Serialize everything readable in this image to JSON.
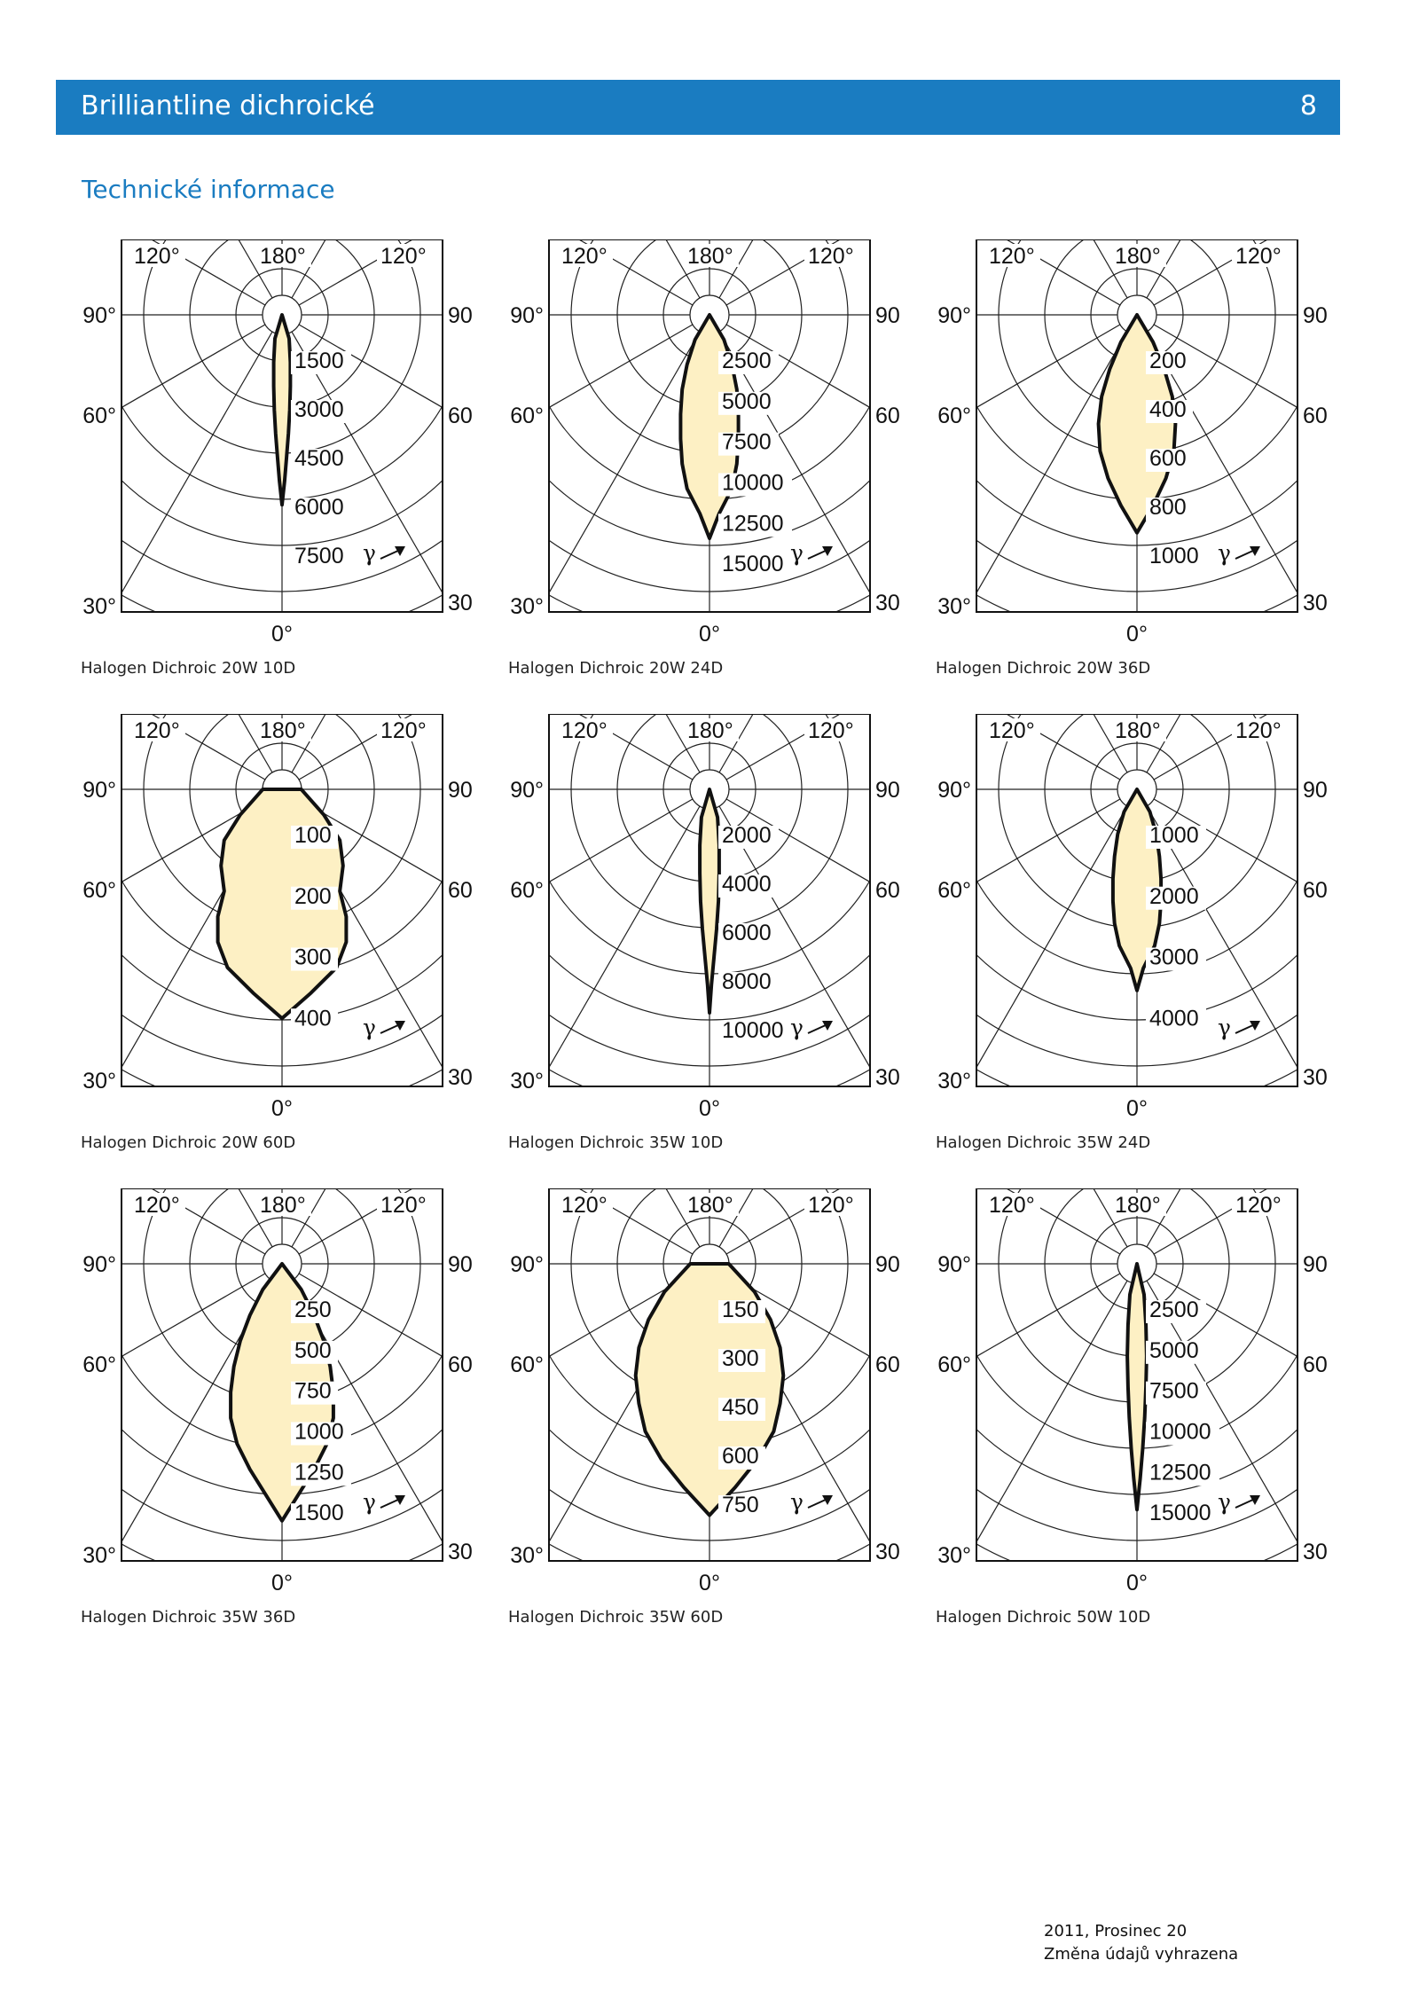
{
  "header": {
    "title": "Brilliantline dichroické",
    "page_number": "8",
    "color": "#1a7cc1"
  },
  "section_title": "Technické informace",
  "diagram_style": {
    "fill": "#fdf0c4",
    "outline": "#111111",
    "grid": "#222222"
  },
  "diagrams": [
    {
      "caption": "Halogen Dichroic 20W 10D",
      "ring_labels": [
        "1500",
        "3000",
        "4500",
        "6000",
        "7500"
      ],
      "angle_labels": {
        "top_left": "120°",
        "top_center": "180°",
        "top_right": "120°",
        "left_90": "90°",
        "right_90": "90°",
        "left_60": "60°",
        "right_60": "60°",
        "left_30": "30°",
        "right_30": "30°",
        "bottom": "0°"
      },
      "gamma_symbol": "γ",
      "beam_half_width": [
        0,
        0.022,
        0.026,
        0.026,
        0.024,
        0.02,
        0.014,
        0.008,
        0
      ],
      "beam_length": 0.68
    },
    {
      "caption": "Halogen Dichroic 20W 24D",
      "ring_labels": [
        "2500",
        "5000",
        "7500",
        "10000",
        "12500",
        "15000"
      ],
      "angle_labels": {
        "top_left": "120°",
        "top_center": "180°",
        "top_right": "120°",
        "left_90": "90°",
        "right_90": "90°",
        "left_60": "60°",
        "right_60": "60°",
        "left_30": "30°",
        "right_30": "30°",
        "bottom": "0°"
      },
      "gamma_symbol": "γ",
      "beam_half_width": [
        0,
        0.045,
        0.07,
        0.085,
        0.09,
        0.09,
        0.085,
        0.07,
        0.03,
        0
      ],
      "beam_length": 0.8
    },
    {
      "caption": "Halogen Dichroic 20W 36D",
      "ring_labels": [
        "200",
        "400",
        "600",
        "800",
        "1000"
      ],
      "angle_labels": {
        "top_left": "120°",
        "top_center": "180°",
        "top_right": "120°",
        "left_90": "90°",
        "right_90": "90°",
        "left_60": "60°",
        "right_60": "60°",
        "left_30": "30°",
        "right_30": "30°",
        "bottom": "0°"
      },
      "gamma_symbol": "γ",
      "beam_half_width": [
        0,
        0.05,
        0.085,
        0.11,
        0.12,
        0.115,
        0.09,
        0.05,
        0
      ],
      "beam_length": 0.78
    },
    {
      "caption": "Halogen Dichroic 20W 60D",
      "ring_labels": [
        "100",
        "200",
        "300",
        "400"
      ],
      "angle_labels": {
        "top_left": "120°",
        "top_center": "180°",
        "top_right": "120°",
        "left_90": "90°",
        "right_90": "90°",
        "left_60": "60°",
        "right_60": "60°",
        "left_30": "30°",
        "right_30": "30°",
        "bottom": "0°"
      },
      "gamma_symbol": "γ",
      "beam_half_width": [
        0.06,
        0.13,
        0.18,
        0.19,
        0.18,
        0.2,
        0.2,
        0.17,
        0.09,
        0
      ],
      "beam_length": 0.82
    },
    {
      "caption": "Halogen Dichroic 35W 10D",
      "ring_labels": [
        "2000",
        "4000",
        "6000",
        "8000",
        "10000"
      ],
      "angle_labels": {
        "top_left": "120°",
        "top_center": "180°",
        "top_right": "120°",
        "left_90": "90°",
        "right_90": "90°",
        "left_60": "60°",
        "right_60": "60°",
        "left_30": "30°",
        "right_30": "30°",
        "bottom": "0°"
      },
      "gamma_symbol": "γ",
      "beam_half_width": [
        0,
        0.025,
        0.03,
        0.03,
        0.028,
        0.022,
        0.014,
        0.006,
        0
      ],
      "beam_length": 0.8
    },
    {
      "caption": "Halogen Dichroic 35W 24D",
      "ring_labels": [
        "1000",
        "2000",
        "3000",
        "4000"
      ],
      "angle_labels": {
        "top_left": "120°",
        "top_center": "180°",
        "top_right": "120°",
        "left_90": "90°",
        "right_90": "90°",
        "left_60": "60°",
        "right_60": "60°",
        "left_30": "30°",
        "right_30": "30°",
        "bottom": "0°"
      },
      "gamma_symbol": "γ",
      "beam_half_width": [
        0,
        0.04,
        0.06,
        0.07,
        0.075,
        0.075,
        0.07,
        0.055,
        0.02,
        0
      ],
      "beam_length": 0.72
    },
    {
      "caption": "Halogen Dichroic 35W 36D",
      "ring_labels": [
        "250",
        "500",
        "750",
        "1000",
        "1250",
        "1500"
      ],
      "angle_labels": {
        "top_left": "120°",
        "top_center": "180°",
        "top_right": "120°",
        "left_90": "90°",
        "right_90": "90°",
        "left_60": "60°",
        "right_60": "60°",
        "left_30": "30°",
        "right_30": "30°",
        "bottom": "0°"
      },
      "gamma_symbol": "γ",
      "beam_half_width": [
        0,
        0.06,
        0.1,
        0.13,
        0.15,
        0.16,
        0.16,
        0.14,
        0.1,
        0.05,
        0
      ],
      "beam_length": 0.92
    },
    {
      "caption": "Halogen Dichroic 35W 60D",
      "ring_labels": [
        "150",
        "300",
        "450",
        "600",
        "750"
      ],
      "angle_labels": {
        "top_left": "120°",
        "top_center": "180°",
        "top_right": "120°",
        "left_90": "90°",
        "right_90": "90°",
        "left_60": "60°",
        "right_60": "60°",
        "left_30": "30°",
        "right_30": "30°",
        "bottom": "0°"
      },
      "gamma_symbol": "γ",
      "beam_half_width": [
        0.06,
        0.14,
        0.19,
        0.22,
        0.23,
        0.22,
        0.2,
        0.15,
        0.08,
        0
      ],
      "beam_length": 0.9
    },
    {
      "caption": "Halogen Dichroic 50W 10D",
      "ring_labels": [
        "2500",
        "5000",
        "7500",
        "10000",
        "12500",
        "15000"
      ],
      "angle_labels": {
        "top_left": "120°",
        "top_center": "180°",
        "top_right": "120°",
        "left_90": "90°",
        "right_90": "90°",
        "left_60": "60°",
        "right_60": "60°",
        "left_30": "30°",
        "right_30": "30°",
        "bottom": "0°"
      },
      "gamma_symbol": "γ",
      "beam_half_width": [
        0,
        0.022,
        0.028,
        0.03,
        0.028,
        0.024,
        0.018,
        0.01,
        0
      ],
      "beam_length": 0.88
    }
  ],
  "footer": {
    "line1": "2011, Prosinec 20",
    "line2": "Změna údajů vyhrazena"
  }
}
